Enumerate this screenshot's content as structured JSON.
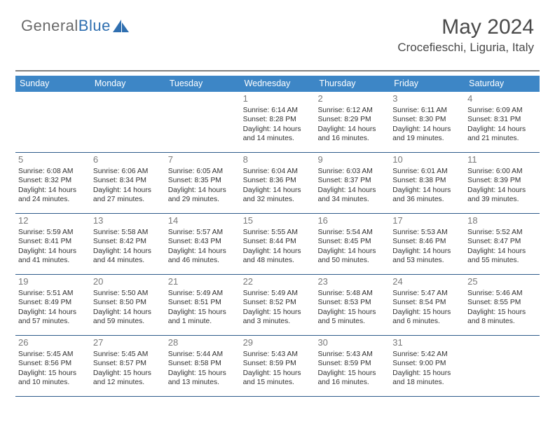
{
  "logo": {
    "part1": "General",
    "part2": "Blue"
  },
  "header": {
    "month_title": "May 2024",
    "location": "Crocefieschi, Liguria, Italy"
  },
  "colors": {
    "header_bg": "#3d86c6",
    "header_text": "#ffffff",
    "week_border": "#2e5b8a",
    "body_text": "#323232",
    "daynum_text": "#7a7a7a",
    "logo_gray": "#6a6a6a",
    "logo_blue": "#2f6fb0"
  },
  "day_headers": [
    "Sunday",
    "Monday",
    "Tuesday",
    "Wednesday",
    "Thursday",
    "Friday",
    "Saturday"
  ],
  "weeks": [
    [
      {
        "n": "",
        "sr": "",
        "ss": "",
        "dl": ""
      },
      {
        "n": "",
        "sr": "",
        "ss": "",
        "dl": ""
      },
      {
        "n": "",
        "sr": "",
        "ss": "",
        "dl": ""
      },
      {
        "n": "1",
        "sr": "Sunrise: 6:14 AM",
        "ss": "Sunset: 8:28 PM",
        "dl": "Daylight: 14 hours and 14 minutes."
      },
      {
        "n": "2",
        "sr": "Sunrise: 6:12 AM",
        "ss": "Sunset: 8:29 PM",
        "dl": "Daylight: 14 hours and 16 minutes."
      },
      {
        "n": "3",
        "sr": "Sunrise: 6:11 AM",
        "ss": "Sunset: 8:30 PM",
        "dl": "Daylight: 14 hours and 19 minutes."
      },
      {
        "n": "4",
        "sr": "Sunrise: 6:09 AM",
        "ss": "Sunset: 8:31 PM",
        "dl": "Daylight: 14 hours and 21 minutes."
      }
    ],
    [
      {
        "n": "5",
        "sr": "Sunrise: 6:08 AM",
        "ss": "Sunset: 8:32 PM",
        "dl": "Daylight: 14 hours and 24 minutes."
      },
      {
        "n": "6",
        "sr": "Sunrise: 6:06 AM",
        "ss": "Sunset: 8:34 PM",
        "dl": "Daylight: 14 hours and 27 minutes."
      },
      {
        "n": "7",
        "sr": "Sunrise: 6:05 AM",
        "ss": "Sunset: 8:35 PM",
        "dl": "Daylight: 14 hours and 29 minutes."
      },
      {
        "n": "8",
        "sr": "Sunrise: 6:04 AM",
        "ss": "Sunset: 8:36 PM",
        "dl": "Daylight: 14 hours and 32 minutes."
      },
      {
        "n": "9",
        "sr": "Sunrise: 6:03 AM",
        "ss": "Sunset: 8:37 PM",
        "dl": "Daylight: 14 hours and 34 minutes."
      },
      {
        "n": "10",
        "sr": "Sunrise: 6:01 AM",
        "ss": "Sunset: 8:38 PM",
        "dl": "Daylight: 14 hours and 36 minutes."
      },
      {
        "n": "11",
        "sr": "Sunrise: 6:00 AM",
        "ss": "Sunset: 8:39 PM",
        "dl": "Daylight: 14 hours and 39 minutes."
      }
    ],
    [
      {
        "n": "12",
        "sr": "Sunrise: 5:59 AM",
        "ss": "Sunset: 8:41 PM",
        "dl": "Daylight: 14 hours and 41 minutes."
      },
      {
        "n": "13",
        "sr": "Sunrise: 5:58 AM",
        "ss": "Sunset: 8:42 PM",
        "dl": "Daylight: 14 hours and 44 minutes."
      },
      {
        "n": "14",
        "sr": "Sunrise: 5:57 AM",
        "ss": "Sunset: 8:43 PM",
        "dl": "Daylight: 14 hours and 46 minutes."
      },
      {
        "n": "15",
        "sr": "Sunrise: 5:55 AM",
        "ss": "Sunset: 8:44 PM",
        "dl": "Daylight: 14 hours and 48 minutes."
      },
      {
        "n": "16",
        "sr": "Sunrise: 5:54 AM",
        "ss": "Sunset: 8:45 PM",
        "dl": "Daylight: 14 hours and 50 minutes."
      },
      {
        "n": "17",
        "sr": "Sunrise: 5:53 AM",
        "ss": "Sunset: 8:46 PM",
        "dl": "Daylight: 14 hours and 53 minutes."
      },
      {
        "n": "18",
        "sr": "Sunrise: 5:52 AM",
        "ss": "Sunset: 8:47 PM",
        "dl": "Daylight: 14 hours and 55 minutes."
      }
    ],
    [
      {
        "n": "19",
        "sr": "Sunrise: 5:51 AM",
        "ss": "Sunset: 8:49 PM",
        "dl": "Daylight: 14 hours and 57 minutes."
      },
      {
        "n": "20",
        "sr": "Sunrise: 5:50 AM",
        "ss": "Sunset: 8:50 PM",
        "dl": "Daylight: 14 hours and 59 minutes."
      },
      {
        "n": "21",
        "sr": "Sunrise: 5:49 AM",
        "ss": "Sunset: 8:51 PM",
        "dl": "Daylight: 15 hours and 1 minute."
      },
      {
        "n": "22",
        "sr": "Sunrise: 5:49 AM",
        "ss": "Sunset: 8:52 PM",
        "dl": "Daylight: 15 hours and 3 minutes."
      },
      {
        "n": "23",
        "sr": "Sunrise: 5:48 AM",
        "ss": "Sunset: 8:53 PM",
        "dl": "Daylight: 15 hours and 5 minutes."
      },
      {
        "n": "24",
        "sr": "Sunrise: 5:47 AM",
        "ss": "Sunset: 8:54 PM",
        "dl": "Daylight: 15 hours and 6 minutes."
      },
      {
        "n": "25",
        "sr": "Sunrise: 5:46 AM",
        "ss": "Sunset: 8:55 PM",
        "dl": "Daylight: 15 hours and 8 minutes."
      }
    ],
    [
      {
        "n": "26",
        "sr": "Sunrise: 5:45 AM",
        "ss": "Sunset: 8:56 PM",
        "dl": "Daylight: 15 hours and 10 minutes."
      },
      {
        "n": "27",
        "sr": "Sunrise: 5:45 AM",
        "ss": "Sunset: 8:57 PM",
        "dl": "Daylight: 15 hours and 12 minutes."
      },
      {
        "n": "28",
        "sr": "Sunrise: 5:44 AM",
        "ss": "Sunset: 8:58 PM",
        "dl": "Daylight: 15 hours and 13 minutes."
      },
      {
        "n": "29",
        "sr": "Sunrise: 5:43 AM",
        "ss": "Sunset: 8:59 PM",
        "dl": "Daylight: 15 hours and 15 minutes."
      },
      {
        "n": "30",
        "sr": "Sunrise: 5:43 AM",
        "ss": "Sunset: 8:59 PM",
        "dl": "Daylight: 15 hours and 16 minutes."
      },
      {
        "n": "31",
        "sr": "Sunrise: 5:42 AM",
        "ss": "Sunset: 9:00 PM",
        "dl": "Daylight: 15 hours and 18 minutes."
      },
      {
        "n": "",
        "sr": "",
        "ss": "",
        "dl": ""
      }
    ]
  ]
}
